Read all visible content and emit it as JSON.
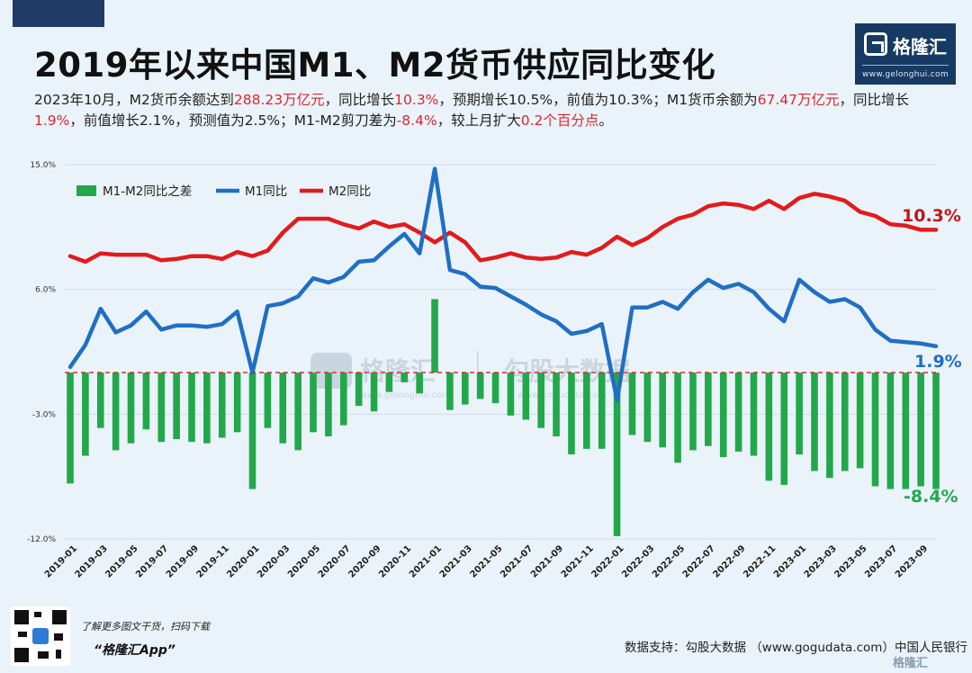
{
  "header": {
    "title": "2019年以来中国M1、M2货币供应同比变化",
    "logo_name": "格隆汇",
    "logo_url": "www.gelonghui.com"
  },
  "summary": {
    "p1": "2023年10月，M2货币余额达到",
    "v1": "288.23万亿元",
    "p2": "，同比增长",
    "v2": "10.3%",
    "p3": "，预期增长10.5%，前值为10.3%；M1货币余额为",
    "v3": "67.47万亿元",
    "p4": "，同比增长",
    "v4": "1.9%",
    "p5": "，前值增长2.1%，预测值为2.5%；M1-M2剪刀差为",
    "v5": "-8.4%",
    "p6": "，较上月扩大",
    "v6": "0.2个百分点",
    "p7": "。"
  },
  "watermark": {
    "text1": "格隆汇",
    "sub1": "www.gelonghui.com",
    "text2": "勾股大数据",
    "sub2": "www.gogudata.com"
  },
  "footer": {
    "promo_line1": "了解更多图文干货，扫码下载",
    "promo_line2": "“格隆汇App”",
    "source": "数据支持：勾股大数据 （www.gogudata.com）中国人民银行",
    "brand": "格隆汇"
  },
  "colors": {
    "m1": "#1f6fc4",
    "m2": "#e31a1c",
    "spread": "#22a84a",
    "zero_line": "#e31a1c",
    "m1_label": "#1f6fc4",
    "m2_label": "#c0161c",
    "spread_label": "#22a84a"
  },
  "chart_data": {
    "type": "bar+line",
    "yticks": [
      "15.0%",
      "6.0%",
      "-3.0%",
      "-12.0%"
    ],
    "ylim": [
      -12,
      15
    ],
    "legend": [
      "M1-M2同比之差",
      "M1同比",
      "M2同比"
    ],
    "end_labels": {
      "m2": "10.3%",
      "m1": "1.9%",
      "spread": "-8.4%"
    },
    "x_tick_labels": [
      "2019-01",
      "2019-03",
      "2019-05",
      "2019-07",
      "2019-09",
      "2019-11",
      "2020-01",
      "2020-03",
      "2020-05",
      "2020-07",
      "2020-09",
      "2020-11",
      "2021-01",
      "2021-03",
      "2021-05",
      "2021-07",
      "2021-09",
      "2021-11",
      "2022-01",
      "2022-03",
      "2022-05",
      "2022-07",
      "2022-09",
      "2022-11",
      "2023-01",
      "2023-03",
      "2023-05",
      "2023-07",
      "2023-09"
    ],
    "x": [
      "2019-01",
      "2019-02",
      "2019-03",
      "2019-04",
      "2019-05",
      "2019-06",
      "2019-07",
      "2019-08",
      "2019-09",
      "2019-10",
      "2019-11",
      "2019-12",
      "2020-01",
      "2020-02",
      "2020-03",
      "2020-04",
      "2020-05",
      "2020-06",
      "2020-07",
      "2020-08",
      "2020-09",
      "2020-10",
      "2020-11",
      "2020-12",
      "2021-01",
      "2021-02",
      "2021-03",
      "2021-04",
      "2021-05",
      "2021-06",
      "2021-07",
      "2021-08",
      "2021-09",
      "2021-10",
      "2021-11",
      "2021-12",
      "2022-01",
      "2022-02",
      "2022-03",
      "2022-04",
      "2022-05",
      "2022-06",
      "2022-07",
      "2022-08",
      "2022-09",
      "2022-10",
      "2022-11",
      "2022-12",
      "2023-01",
      "2023-02",
      "2023-03",
      "2023-04",
      "2023-05",
      "2023-06",
      "2023-07",
      "2023-08",
      "2023-09",
      "2023-10"
    ],
    "series": [
      {
        "name": "M2同比",
        "values": [
          8.4,
          8.0,
          8.6,
          8.5,
          8.5,
          8.5,
          8.1,
          8.2,
          8.4,
          8.4,
          8.2,
          8.7,
          8.4,
          8.8,
          10.1,
          11.1,
          11.1,
          11.1,
          10.7,
          10.4,
          10.9,
          10.5,
          10.7,
          10.1,
          9.4,
          10.1,
          9.4,
          8.1,
          8.3,
          8.6,
          8.3,
          8.2,
          8.3,
          8.7,
          8.5,
          9.0,
          9.8,
          9.2,
          9.7,
          10.5,
          11.1,
          11.4,
          12.0,
          12.2,
          12.1,
          11.8,
          12.4,
          11.8,
          12.6,
          12.9,
          12.7,
          12.4,
          11.6,
          11.3,
          10.7,
          10.6,
          10.3,
          10.3
        ]
      },
      {
        "name": "M1同比",
        "values": [
          0.4,
          2.0,
          4.6,
          2.9,
          3.4,
          4.4,
          3.1,
          3.4,
          3.4,
          3.3,
          3.5,
          4.4,
          0.0,
          4.8,
          5.0,
          5.5,
          6.8,
          6.5,
          6.9,
          8.0,
          8.1,
          9.1,
          10.0,
          8.6,
          14.7,
          7.4,
          7.1,
          6.2,
          6.1,
          5.5,
          4.9,
          4.2,
          3.7,
          2.8,
          3.0,
          3.5,
          -2.0,
          4.7,
          4.7,
          5.1,
          4.6,
          5.8,
          6.7,
          6.1,
          6.4,
          5.8,
          4.6,
          3.7,
          6.7,
          5.8,
          5.1,
          5.3,
          4.7,
          3.1,
          2.3,
          2.2,
          2.1,
          1.9
        ]
      },
      {
        "name": "M1-M2同比之差",
        "values": [
          -8.0,
          -6.0,
          -4.0,
          -5.6,
          -5.1,
          -4.1,
          -5.0,
          -4.8,
          -5.0,
          -5.1,
          -4.7,
          -4.3,
          -8.4,
          -4.0,
          -5.1,
          -5.6,
          -4.3,
          -4.6,
          -3.8,
          -2.4,
          -2.8,
          -1.4,
          -0.7,
          -1.5,
          5.3,
          -2.7,
          -2.3,
          -1.9,
          -2.2,
          -3.1,
          -3.4,
          -4.0,
          -4.6,
          -5.9,
          -5.5,
          -5.5,
          -11.8,
          -4.5,
          -5.0,
          -5.4,
          -6.5,
          -5.6,
          -5.3,
          -6.1,
          -5.7,
          -6.0,
          -7.8,
          -8.1,
          -5.9,
          -7.1,
          -7.6,
          -7.1,
          -6.9,
          -8.2,
          -8.4,
          -8.4,
          -8.2,
          -8.4
        ]
      }
    ]
  }
}
